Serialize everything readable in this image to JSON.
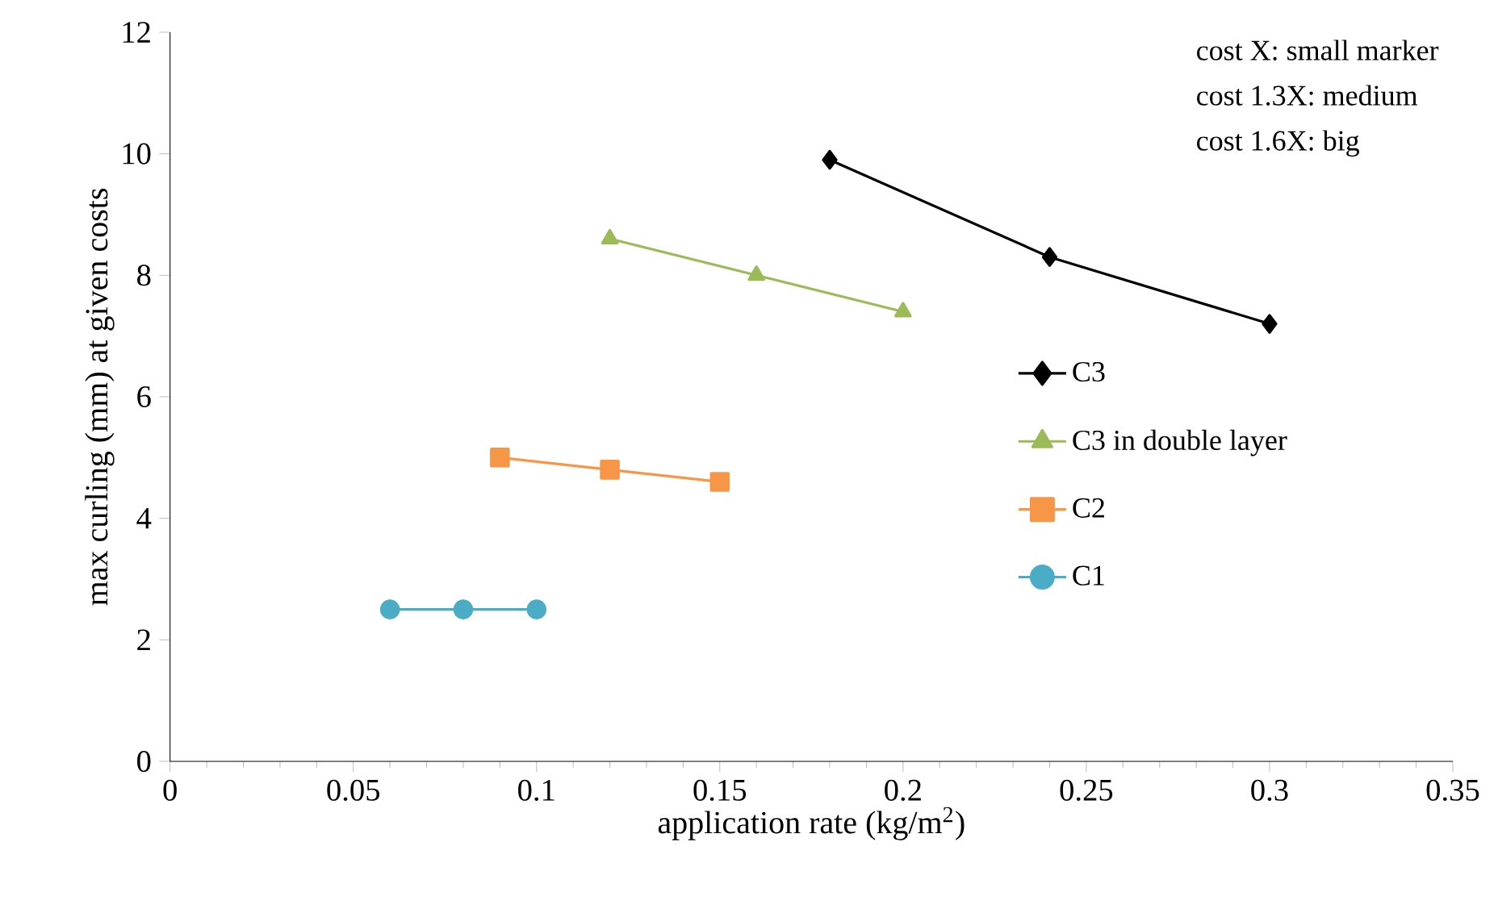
{
  "chart_data": {
    "type": "line",
    "xlabel": "application rate (kg/m$^{2}$)",
    "ylabel": "max curling (mm) at given costs",
    "xlim": [
      0,
      0.35
    ],
    "xticks": [
      0,
      0.05,
      0.1,
      0.15,
      0.2,
      0.25,
      0.3,
      0.35
    ],
    "ylim": [
      0,
      12
    ],
    "yticks": [
      0,
      2,
      4,
      6,
      8,
      10,
      12
    ],
    "grid": false,
    "legend": "right",
    "annotations": [
      "cost X: small marker",
      "cost 1.3X: medium",
      "cost 1.6X: big"
    ],
    "series": [
      {
        "name": "C3",
        "color": "#000000",
        "marker": "diamond",
        "x": [
          0.18,
          0.24,
          0.3
        ],
        "values": [
          9.9,
          8.3,
          7.2
        ]
      },
      {
        "name": "C3 in double layer",
        "color": "#9bbb59",
        "marker": "triangle",
        "x": [
          0.12,
          0.16,
          0.2
        ],
        "values": [
          8.6,
          8.0,
          7.4
        ]
      },
      {
        "name": "C2",
        "color": "#f79646",
        "marker": "square",
        "x": [
          0.09,
          0.12,
          0.15
        ],
        "values": [
          5.0,
          4.8,
          4.6
        ]
      },
      {
        "name": "C1",
        "color": "#4bacc6",
        "marker": "circle",
        "x": [
          0.06,
          0.08,
          0.1
        ],
        "values": [
          2.5,
          2.5,
          2.5
        ]
      }
    ]
  }
}
